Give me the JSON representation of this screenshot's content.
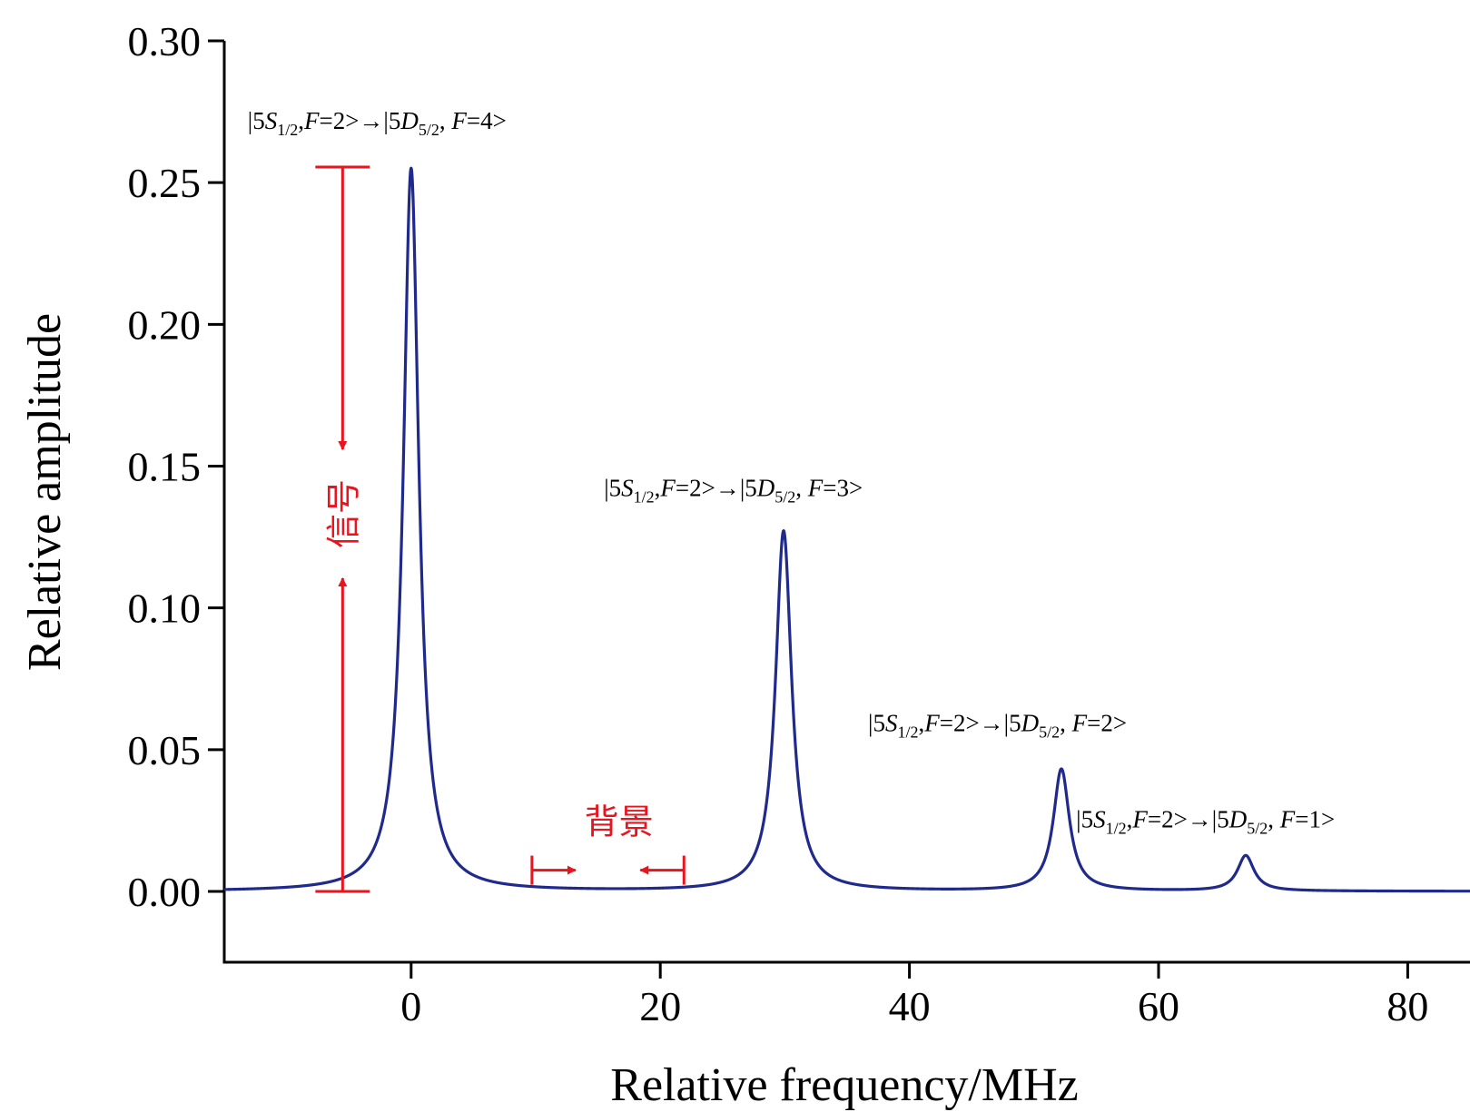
{
  "chart_data": {
    "type": "line",
    "xlabel": "Relative frequency/MHz",
    "ylabel": "Relative amplitude",
    "xlim": [
      -15,
      85
    ],
    "ylim": [
      -0.025,
      0.3
    ],
    "xticks": [
      0,
      20,
      40,
      60,
      80
    ],
    "yticks": [
      0.0,
      0.05,
      0.1,
      0.15,
      0.2,
      0.25,
      0.3
    ],
    "ytick_labels": [
      "0.00",
      "0.05",
      "0.10",
      "0.15",
      "0.20",
      "0.25",
      "0.30"
    ],
    "grid": false,
    "series": [
      {
        "color": "#1f2a8c",
        "peaks": [
          {
            "center": 0,
            "amplitude": 0.255,
            "hwhm": 0.75
          },
          {
            "center": 29.9,
            "amplitude": 0.127,
            "hwhm": 0.78
          },
          {
            "center": 52.2,
            "amplitude": 0.043,
            "hwhm": 0.78
          },
          {
            "center": 67.0,
            "amplitude": 0.0125,
            "hwhm": 0.8
          }
        ],
        "x_range": [
          -15,
          85
        ]
      }
    ],
    "annotations": {
      "peaks": [
        {
          "prefix": "|5",
          "s": "S",
          "s_sub": "1/2",
          "mid1": ",",
          "f1": "F",
          "mid2": "=2>→|5",
          "d": "D",
          "d_sub": "5/2",
          "mid3": ", ",
          "f2": "F",
          "end": "=4>",
          "x": 0,
          "y": 0.269
        },
        {
          "prefix": "|5",
          "s": "S",
          "s_sub": "1/2",
          "mid1": ",",
          "f1": "F",
          "mid2": "=2>→|5",
          "d": "D",
          "d_sub": "5/2",
          "mid3": ", ",
          "f2": "F",
          "end": "=3>",
          "x": 28.6,
          "y": 0.1395
        },
        {
          "prefix": "|5",
          "s": "S",
          "s_sub": "1/2",
          "mid1": ",",
          "f1": "F",
          "mid2": "=2>→|5",
          "d": "D",
          "d_sub": "5/2",
          "mid3": ", ",
          "f2": "F",
          "end": "=2>",
          "x": 49.8,
          "y": 0.0565
        },
        {
          "prefix": "|5",
          "s": "S",
          "s_sub": "1/2",
          "mid1": ",",
          "f1": "F",
          "mid2": "=2>→|5",
          "d": "D",
          "d_sub": "5/2",
          "mid3": ", ",
          "f2": "F",
          "end": "=1>",
          "x": 66.5,
          "y": 0.0225
        }
      ],
      "signal_label": "信号",
      "background_label": "背景",
      "signal_x": -5.5,
      "signal_range": [
        0.0,
        0.2555
      ],
      "background_range": [
        9.7,
        21.9
      ],
      "background_y": 0.0075,
      "red_color": "#e8141e"
    }
  }
}
